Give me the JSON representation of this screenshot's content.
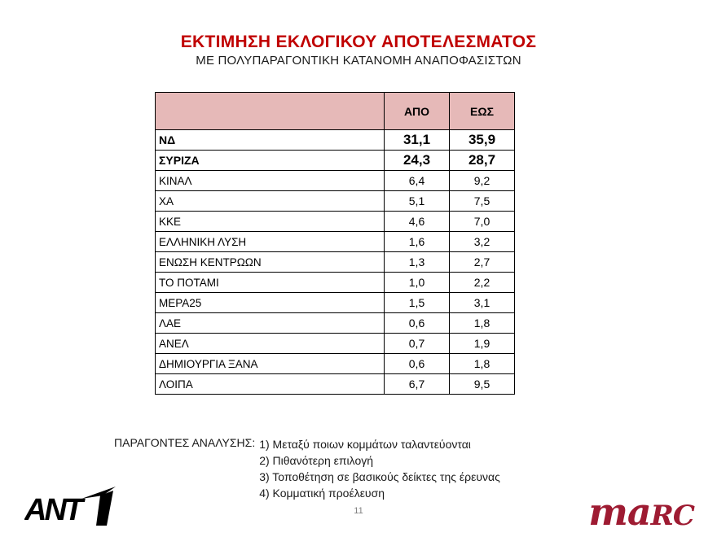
{
  "slide": {
    "title": "ΕΚΤΙΜΗΣΗ ΕΚΛΟΓΙΚΟΥ ΑΠΟΤΕΛΕΣΜΑΤΟΣ",
    "subtitle": "ΜΕ ΠΟΛΥΠΑΡΑΓΟΝΤΙΚΗ ΚΑΤΑΝΟΜΗ ΑΝΑΠΟΦΑΣΙΣΤΩΝ",
    "page_number": "11"
  },
  "colors": {
    "title_red": "#C00000",
    "header_pink": "#E6B9B8",
    "marc_red": "#9E1B32",
    "border_black": "#000000"
  },
  "chart_data": {
    "type": "table",
    "columns": [
      "",
      "ΑΠΟ",
      "ΕΩΣ"
    ],
    "rows": [
      {
        "party": "ΝΔ",
        "from": "31,1",
        "to": "35,9",
        "emphasis": true
      },
      {
        "party": "ΣΥΡΙΖΑ",
        "from": "24,3",
        "to": "28,7",
        "emphasis": true
      },
      {
        "party": "ΚΙΝΑΛ",
        "from": "6,4",
        "to": "9,2",
        "emphasis": false
      },
      {
        "party": "ΧΑ",
        "from": "5,1",
        "to": "7,5",
        "emphasis": false
      },
      {
        "party": "ΚΚΕ",
        "from": "4,6",
        "to": "7,0",
        "emphasis": false
      },
      {
        "party": "ΕΛΛΗΝΙΚΗ ΛΥΣΗ",
        "from": "1,6",
        "to": "3,2",
        "emphasis": false
      },
      {
        "party": "ΕΝΩΣΗ ΚΕΝΤΡΩΩΝ",
        "from": "1,3",
        "to": "2,7",
        "emphasis": false
      },
      {
        "party": "ΤΟ ΠΟΤΑΜΙ",
        "from": "1,0",
        "to": "2,2",
        "emphasis": false
      },
      {
        "party": "ΜΕΡΑ25",
        "from": "1,5",
        "to": "3,1",
        "emphasis": false
      },
      {
        "party": "ΛΑΕ",
        "from": "0,6",
        "to": "1,8",
        "emphasis": false
      },
      {
        "party": "ΑΝΕΛ",
        "from": "0,7",
        "to": "1,9",
        "emphasis": false
      },
      {
        "party": "ΔΗΜΙΟΥΡΓΙΑ ΞΑΝΑ",
        "from": "0,6",
        "to": "1,8",
        "emphasis": false
      },
      {
        "party": "ΛΟΙΠΑ",
        "from": "6,7",
        "to": "9,5",
        "emphasis": false
      }
    ]
  },
  "footnote": {
    "label": "ΠΑΡΑΓΟΝΤΕΣ ΑΝΑΛΥΣΗΣ:",
    "lines": [
      "1) Μεταξύ ποιων κομμάτων ταλαντεύονται",
      "2) Πιθανότερη επιλογή",
      "3) Τοποθέτηση σε βασικούς δείκτες της έρευνας",
      "4) Κομματική προέλευση"
    ]
  },
  "logos": {
    "ant1": "ANT1",
    "marc_lc": "ma",
    "marc_sc": "rc"
  }
}
